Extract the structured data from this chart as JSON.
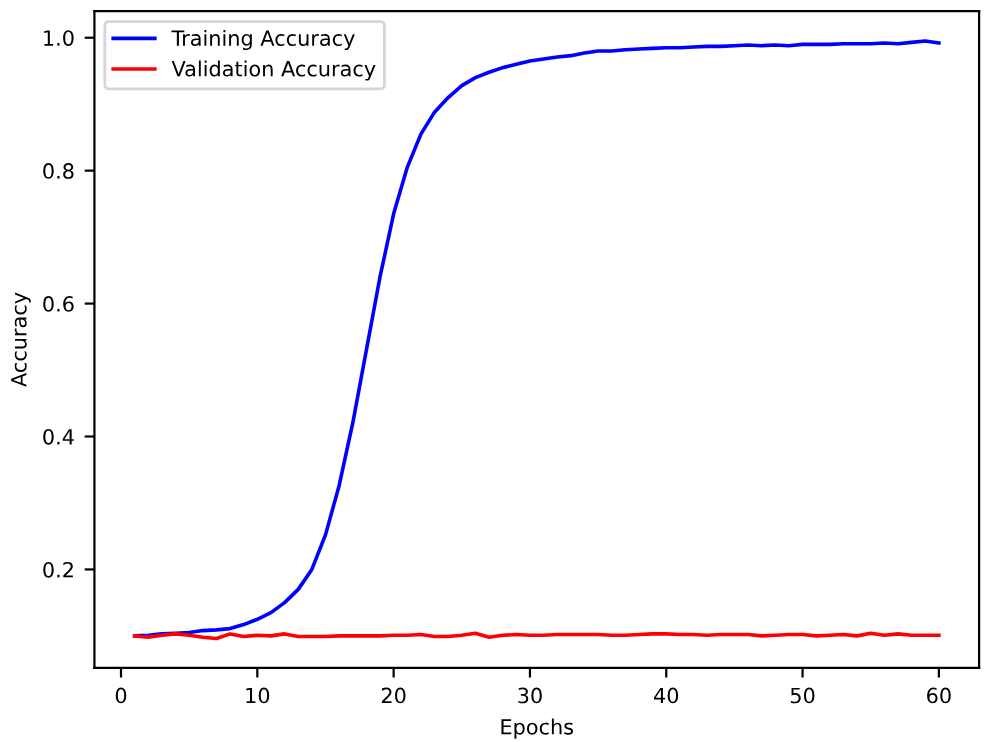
{
  "chart_data": {
    "type": "line",
    "xlabel": "Epochs",
    "ylabel": "Accuracy",
    "x": [
      1,
      2,
      3,
      4,
      5,
      6,
      7,
      8,
      9,
      10,
      11,
      12,
      13,
      14,
      15,
      16,
      17,
      18,
      19,
      20,
      21,
      22,
      23,
      24,
      25,
      26,
      27,
      28,
      29,
      30,
      31,
      32,
      33,
      34,
      35,
      36,
      37,
      38,
      39,
      40,
      41,
      42,
      43,
      44,
      45,
      46,
      47,
      48,
      49,
      50,
      51,
      52,
      53,
      54,
      55,
      56,
      57,
      58,
      59,
      60
    ],
    "series": [
      {
        "name": "Training Accuracy",
        "color": "#0000ff",
        "values": [
          0.1,
          0.101,
          0.103,
          0.104,
          0.105,
          0.108,
          0.109,
          0.111,
          0.117,
          0.125,
          0.135,
          0.15,
          0.17,
          0.2,
          0.252,
          0.326,
          0.42,
          0.53,
          0.64,
          0.735,
          0.805,
          0.855,
          0.888,
          0.91,
          0.928,
          0.94,
          0.948,
          0.955,
          0.96,
          0.965,
          0.968,
          0.971,
          0.973,
          0.977,
          0.98,
          0.98,
          0.982,
          0.983,
          0.984,
          0.985,
          0.985,
          0.986,
          0.987,
          0.987,
          0.988,
          0.989,
          0.988,
          0.989,
          0.988,
          0.99,
          0.99,
          0.99,
          0.991,
          0.991,
          0.991,
          0.992,
          0.991,
          0.993,
          0.995,
          0.992
        ]
      },
      {
        "name": "Validation Accuracy",
        "color": "#ff0000",
        "values": [
          0.1,
          0.098,
          0.101,
          0.103,
          0.101,
          0.098,
          0.096,
          0.103,
          0.099,
          0.101,
          0.1,
          0.103,
          0.099,
          0.099,
          0.099,
          0.1,
          0.1,
          0.1,
          0.1,
          0.101,
          0.101,
          0.102,
          0.099,
          0.099,
          0.101,
          0.104,
          0.098,
          0.101,
          0.102,
          0.101,
          0.101,
          0.102,
          0.102,
          0.102,
          0.102,
          0.101,
          0.101,
          0.102,
          0.103,
          0.103,
          0.102,
          0.102,
          0.101,
          0.102,
          0.102,
          0.102,
          0.1,
          0.101,
          0.102,
          0.102,
          0.1,
          0.101,
          0.102,
          0.1,
          0.104,
          0.101,
          0.103,
          0.101,
          0.101,
          0.101
        ]
      }
    ],
    "xlim": [
      -1.95,
      62.95
    ],
    "ylim": [
      0.052,
      1.04
    ],
    "xticks": [
      0,
      10,
      20,
      30,
      40,
      50,
      60
    ],
    "yticks": [
      {
        "value": 0.2,
        "label": "0.2"
      },
      {
        "value": 0.4,
        "label": "0.4"
      },
      {
        "value": 0.6,
        "label": "0.6"
      },
      {
        "value": 0.8,
        "label": "0.8"
      },
      {
        "value": 1.0,
        "label": "1.0"
      }
    ],
    "legend": "top left",
    "grid": false,
    "marker": "none",
    "line_style": "solid"
  }
}
